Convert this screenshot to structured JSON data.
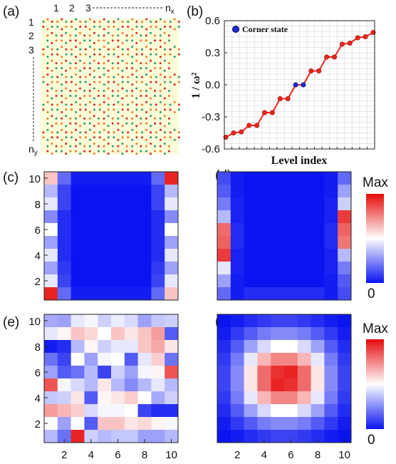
{
  "panel_labels": [
    "(a)",
    "(b)",
    "(c)",
    "(d)",
    "(e)",
    "(f)"
  ],
  "lattice": {
    "col_labels": [
      "1",
      "2",
      "3"
    ],
    "col_last_label": "n",
    "col_last_sub": "x",
    "row_labels": [
      "1",
      "2",
      "3"
    ],
    "row_last_label": "n",
    "row_last_sub": "y",
    "bg_color": "#fcfcd8",
    "colors": [
      "#2e9a6e",
      "#f07a2a",
      "#d62828"
    ]
  },
  "colorbar": {
    "max_label": "Max",
    "min_label": "0"
  },
  "chart_data": [
    {
      "panel": "(b)",
      "type": "line",
      "ylabel": "1 / ω²",
      "xlabel": "Level index",
      "yticks": [
        "-0.6",
        "-0.3",
        "0.0",
        "0.3",
        "0.6"
      ],
      "ylim": [
        -0.6,
        0.6
      ],
      "grid": true,
      "legend": {
        "label": "Corner state",
        "position": "top-left"
      },
      "series_color": "#e8261c",
      "corner_color": "#1a2bd6",
      "values": [
        -0.49,
        -0.45,
        -0.44,
        -0.38,
        -0.38,
        -0.26,
        -0.26,
        -0.13,
        -0.13,
        0.0,
        0.0,
        0.13,
        0.13,
        0.26,
        0.26,
        0.38,
        0.39,
        0.44,
        0.45,
        0.49
      ],
      "corner_indices": [
        9,
        10
      ]
    },
    {
      "panel": "(c)",
      "type": "heatmap",
      "xticks": [],
      "yticks": [
        "2",
        "4",
        "6",
        "8",
        "10"
      ],
      "grid_values": [
        [
          0.62,
          0.18,
          0.02,
          0.02,
          0.02,
          0.02,
          0.02,
          0.02,
          0.18,
          0.95
        ],
        [
          0.35,
          0.1,
          0.0,
          0.0,
          0.0,
          0.0,
          0.0,
          0.0,
          0.1,
          0.35
        ],
        [
          0.45,
          0.1,
          0.0,
          0.0,
          0.0,
          0.0,
          0.0,
          0.0,
          0.1,
          0.45
        ],
        [
          0.25,
          0.05,
          0.0,
          0.0,
          0.0,
          0.0,
          0.0,
          0.0,
          0.05,
          0.25
        ],
        [
          0.5,
          0.05,
          0.0,
          0.0,
          0.0,
          0.0,
          0.0,
          0.0,
          0.05,
          0.5
        ],
        [
          0.3,
          0.05,
          0.0,
          0.0,
          0.0,
          0.0,
          0.0,
          0.0,
          0.05,
          0.3
        ],
        [
          0.45,
          0.05,
          0.0,
          0.0,
          0.0,
          0.0,
          0.0,
          0.0,
          0.05,
          0.45
        ],
        [
          0.3,
          0.08,
          0.0,
          0.0,
          0.0,
          0.0,
          0.0,
          0.0,
          0.08,
          0.3
        ],
        [
          0.45,
          0.1,
          0.0,
          0.0,
          0.0,
          0.0,
          0.0,
          0.0,
          0.1,
          0.45
        ],
        [
          0.95,
          0.18,
          0.02,
          0.02,
          0.02,
          0.02,
          0.02,
          0.02,
          0.18,
          0.62
        ]
      ]
    },
    {
      "panel": "(d)",
      "type": "heatmap",
      "xticks": [],
      "yticks": [],
      "grid_values": [
        [
          0.12,
          0.02,
          0.0,
          0.0,
          0.0,
          0.0,
          0.0,
          0.0,
          0.02,
          0.18
        ],
        [
          0.15,
          0.02,
          0.0,
          0.0,
          0.0,
          0.0,
          0.0,
          0.0,
          0.02,
          0.3
        ],
        [
          0.22,
          0.03,
          0.0,
          0.0,
          0.0,
          0.0,
          0.0,
          0.0,
          0.03,
          0.4
        ],
        [
          0.35,
          0.03,
          0.0,
          0.0,
          0.0,
          0.0,
          0.0,
          0.0,
          0.03,
          0.9
        ],
        [
          0.8,
          0.05,
          0.0,
          0.0,
          0.0,
          0.0,
          0.0,
          0.0,
          0.05,
          0.82
        ],
        [
          0.82,
          0.05,
          0.0,
          0.0,
          0.0,
          0.0,
          0.0,
          0.0,
          0.05,
          0.78
        ],
        [
          0.9,
          0.03,
          0.0,
          0.0,
          0.0,
          0.0,
          0.0,
          0.0,
          0.03,
          0.35
        ],
        [
          0.45,
          0.03,
          0.0,
          0.0,
          0.0,
          0.0,
          0.0,
          0.0,
          0.03,
          0.22
        ],
        [
          0.3,
          0.02,
          0.0,
          0.0,
          0.0,
          0.0,
          0.0,
          0.0,
          0.02,
          0.15
        ],
        [
          0.18,
          0.02,
          0.05,
          0.05,
          0.05,
          0.05,
          0.05,
          0.05,
          0.02,
          0.12
        ]
      ]
    },
    {
      "panel": "(e)",
      "type": "heatmap",
      "xticks": [
        "2",
        "4",
        "6",
        "8",
        "10"
      ],
      "yticks": [
        "2",
        "4",
        "6",
        "8",
        "10"
      ],
      "grid_values": [
        [
          0.32,
          0.3,
          0.45,
          0.48,
          0.4,
          0.46,
          0.42,
          0.3,
          0.38,
          0.4
        ],
        [
          0.45,
          0.52,
          0.62,
          0.58,
          0.5,
          0.62,
          0.55,
          0.62,
          0.7,
          0.15
        ],
        [
          0.02,
          0.05,
          0.35,
          0.52,
          0.4,
          0.45,
          0.45,
          0.62,
          0.68,
          0.55
        ],
        [
          0.2,
          0.1,
          0.5,
          0.3,
          0.48,
          0.5,
          0.15,
          0.45,
          0.6,
          0.2
        ],
        [
          0.3,
          0.15,
          0.2,
          0.35,
          0.1,
          0.4,
          0.3,
          0.48,
          0.52,
          0.85
        ],
        [
          0.85,
          0.48,
          0.42,
          0.35,
          0.55,
          0.35,
          0.25,
          0.35,
          0.45,
          0.35
        ],
        [
          0.38,
          0.4,
          0.55,
          0.15,
          0.52,
          0.55,
          0.6,
          0.5,
          0.32,
          0.4
        ],
        [
          0.7,
          0.65,
          0.6,
          0.42,
          0.48,
          0.48,
          0.5,
          0.1,
          0.05,
          0.05
        ],
        [
          0.5,
          0.3,
          0.5,
          0.15,
          0.62,
          0.62,
          0.55,
          0.58,
          0.52,
          0.48
        ],
        [
          0.35,
          0.2,
          0.95,
          0.4,
          0.35,
          0.38,
          0.38,
          0.3,
          0.3,
          0.35
        ]
      ]
    },
    {
      "panel": "(f)",
      "type": "heatmap",
      "xticks": [
        "2",
        "4",
        "6",
        "8",
        "10"
      ],
      "yticks": [],
      "grid_values": [
        [
          0.0,
          0.02,
          0.05,
          0.08,
          0.1,
          0.1,
          0.08,
          0.05,
          0.02,
          0.0
        ],
        [
          0.02,
          0.08,
          0.15,
          0.22,
          0.25,
          0.25,
          0.22,
          0.15,
          0.08,
          0.02
        ],
        [
          0.05,
          0.15,
          0.3,
          0.42,
          0.5,
          0.5,
          0.42,
          0.3,
          0.15,
          0.05
        ],
        [
          0.08,
          0.22,
          0.45,
          0.65,
          0.75,
          0.75,
          0.65,
          0.45,
          0.22,
          0.08
        ],
        [
          0.1,
          0.25,
          0.55,
          0.8,
          0.92,
          0.95,
          0.8,
          0.55,
          0.25,
          0.1
        ],
        [
          0.1,
          0.25,
          0.55,
          0.8,
          0.95,
          0.92,
          0.8,
          0.55,
          0.25,
          0.1
        ],
        [
          0.08,
          0.22,
          0.45,
          0.65,
          0.75,
          0.75,
          0.65,
          0.45,
          0.22,
          0.08
        ],
        [
          0.05,
          0.15,
          0.3,
          0.42,
          0.5,
          0.5,
          0.42,
          0.3,
          0.15,
          0.05
        ],
        [
          0.02,
          0.08,
          0.15,
          0.22,
          0.25,
          0.25,
          0.22,
          0.15,
          0.08,
          0.02
        ],
        [
          0.0,
          0.02,
          0.05,
          0.08,
          0.1,
          0.1,
          0.08,
          0.05,
          0.02,
          0.0
        ]
      ]
    }
  ]
}
